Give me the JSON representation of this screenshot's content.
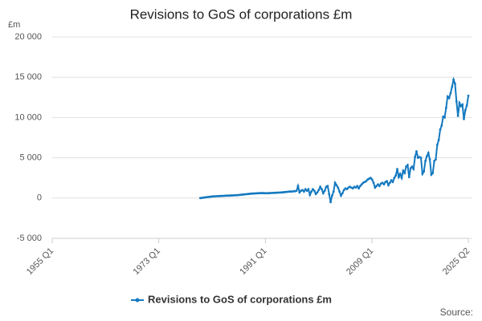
{
  "chart_data": {
    "type": "line",
    "title": "Revisions to GoS of corporations £m",
    "y_unit": "£m",
    "source": "Source:",
    "categories": [
      "1955 Q1",
      null,
      null,
      null,
      null,
      null,
      null,
      null,
      null,
      null,
      null,
      null,
      null,
      null,
      null,
      null,
      null,
      null,
      null,
      null,
      null,
      null,
      null,
      null,
      null,
      null,
      null,
      null,
      null,
      null,
      null,
      null,
      null,
      null,
      null,
      null,
      null,
      null,
      null,
      null,
      null,
      null,
      null,
      null,
      null,
      null,
      null,
      null,
      null,
      null,
      null,
      null,
      null,
      null,
      null,
      null,
      null,
      null,
      null,
      null,
      null,
      null,
      null,
      null,
      null,
      null,
      null,
      null,
      null,
      null,
      null,
      null,
      "1973 Q1",
      null,
      null,
      null,
      null,
      null,
      null,
      null,
      null,
      null,
      null,
      null,
      null,
      null,
      null,
      null,
      null,
      null,
      null,
      null,
      null,
      null,
      null,
      null,
      null,
      null,
      null,
      null,
      null,
      null,
      null,
      null,
      null,
      null,
      null,
      null,
      null,
      null,
      null,
      null,
      null,
      null,
      null,
      null,
      null,
      null,
      null,
      null,
      null,
      null,
      null,
      null,
      null,
      null,
      null,
      null,
      null,
      null,
      null,
      null,
      null,
      null,
      null,
      null,
      null,
      null,
      null,
      null,
      null,
      null,
      null,
      null,
      "1991 Q1",
      null,
      null,
      null,
      null,
      null,
      null,
      null,
      null,
      null,
      null,
      null,
      null,
      null,
      null,
      null,
      null,
      null,
      null,
      null,
      null,
      null,
      null,
      null,
      null,
      null,
      null,
      null,
      null,
      null,
      null,
      null,
      null,
      null,
      null,
      null,
      null,
      null,
      null,
      null,
      null,
      null,
      null,
      null,
      null,
      null,
      null,
      null,
      null,
      null,
      null,
      null,
      null,
      null,
      null,
      null,
      null,
      null,
      null,
      null,
      null,
      null,
      null,
      null,
      null,
      null,
      null,
      null,
      null,
      null,
      null,
      null,
      "2009 Q1",
      null,
      null,
      null,
      null,
      null,
      null,
      null,
      null,
      null,
      null,
      null,
      null,
      null,
      null,
      null,
      null,
      null,
      null,
      null,
      null,
      null,
      null,
      null,
      null,
      null,
      null,
      null,
      null,
      null,
      null,
      null,
      null,
      null,
      null,
      null,
      null,
      null,
      null,
      null,
      null,
      null,
      null,
      null,
      null,
      null,
      null,
      null,
      null,
      null,
      null,
      null,
      null,
      null,
      null,
      null,
      null,
      null,
      null,
      null,
      null,
      null,
      null,
      null,
      null,
      "2025 Q2"
    ],
    "series": [
      {
        "name": "Revisions to GoS of corporations £m",
        "color": "#1479c0",
        "values": [
          null,
          null,
          null,
          null,
          null,
          null,
          null,
          null,
          null,
          null,
          null,
          null,
          null,
          null,
          null,
          null,
          null,
          null,
          null,
          null,
          null,
          null,
          null,
          null,
          null,
          null,
          null,
          null,
          null,
          null,
          null,
          null,
          null,
          null,
          null,
          null,
          null,
          null,
          null,
          null,
          null,
          null,
          null,
          null,
          null,
          null,
          null,
          null,
          null,
          null,
          null,
          null,
          null,
          null,
          null,
          null,
          null,
          null,
          null,
          null,
          null,
          null,
          null,
          null,
          null,
          null,
          null,
          null,
          null,
          null,
          null,
          null,
          null,
          null,
          null,
          null,
          null,
          null,
          null,
          null,
          null,
          null,
          null,
          null,
          null,
          null,
          null,
          null,
          null,
          null,
          null,
          null,
          null,
          null,
          null,
          null,
          null,
          null,
          null,
          null,
          0,
          20,
          50,
          80,
          100,
          130,
          150,
          170,
          200,
          210,
          220,
          230,
          240,
          250,
          260,
          270,
          280,
          290,
          300,
          300,
          310,
          320,
          330,
          340,
          350,
          360,
          380,
          400,
          420,
          440,
          460,
          480,
          500,
          520,
          540,
          560,
          570,
          580,
          590,
          600,
          610,
          620,
          620,
          610,
          600,
          600,
          610,
          620,
          630,
          640,
          650,
          660,
          670,
          680,
          690,
          700,
          720,
          740,
          760,
          780,
          800,
          820,
          800,
          850,
          850,
          900,
          1500,
          700,
          900,
          1000,
          800,
          1100,
          900,
          1100,
          400,
          800,
          1100,
          900,
          500,
          700,
          1000,
          1400,
          1100,
          600,
          900,
          1400,
          1500,
          500,
          -500,
          300,
          800,
          1900,
          1600,
          1300,
          800,
          300,
          600,
          1000,
          1200,
          1100,
          1300,
          1400,
          1300,
          1200,
          1400,
          1300,
          1500,
          1200,
          1500,
          1700,
          1900,
          2000,
          2100,
          2300,
          2400,
          2500,
          2300,
          1900,
          1300,
          1500,
          1700,
          1500,
          1800,
          1900,
          1700,
          2000,
          2100,
          1600,
          1900,
          2200,
          2000,
          2500,
          2800,
          3600,
          2600,
          3000,
          2500,
          3400,
          3100,
          3900,
          4100,
          2600,
          3700,
          3900,
          3600,
          5100,
          5800,
          5000,
          5100,
          5000,
          3000,
          3300,
          4600,
          5200,
          5600,
          4800,
          2900,
          3100,
          4600,
          4800,
          6600,
          7200,
          8500,
          9000,
          10100,
          10000,
          11200,
          12600,
          12400,
          13000,
          13800,
          14700,
          14200,
          12000,
          10200,
          11800,
          11400,
          11600,
          9800,
          10900,
          11500,
          12700
        ]
      }
    ],
    "ylim": [
      -5000,
      20000
    ],
    "yticks": [
      {
        "value": -5000,
        "label": "-5 000"
      },
      0,
      {
        "value": 5000,
        "label": "5 000"
      },
      {
        "value": 10000,
        "label": "10 000"
      },
      {
        "value": 15000,
        "label": "15 000"
      },
      {
        "value": 20000,
        "label": "20 000"
      }
    ],
    "grid": true,
    "legend": "bottom"
  }
}
